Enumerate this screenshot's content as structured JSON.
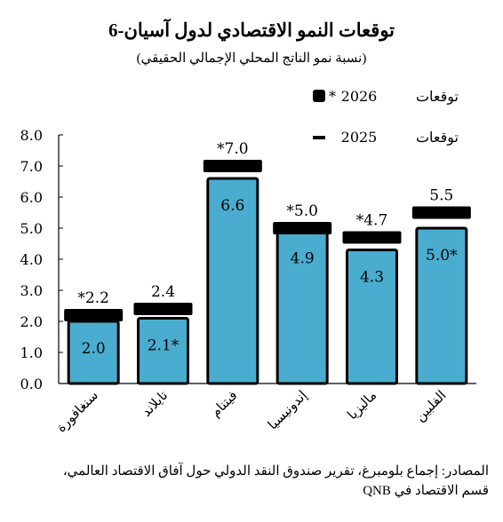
{
  "chart_data": {
    "type": "bar",
    "title": "توقعات النمو الاقتصادي لدول آسيان-6",
    "subtitle": "(نسبة نمو الناتج المحلي الإجمالي الحقيقي)",
    "categories": [
      "سنغافورة",
      "تايلاند",
      "فيتنام",
      "إندونيسيا",
      "ماليزيا",
      "الفلبين"
    ],
    "series": [
      {
        "name": "توقعات 2025",
        "values": [
          2.0,
          2.1,
          6.6,
          4.9,
          4.3,
          5.0
        ],
        "labels": [
          "2.0",
          "2.1*",
          "6.6",
          "4.9",
          "4.3",
          "5.0*"
        ]
      },
      {
        "name": "توقعات 2026",
        "values": [
          2.2,
          2.4,
          7.0,
          5.0,
          4.7,
          5.5
        ],
        "labels": [
          "*2.2",
          "2.4",
          "*7.0",
          "*5.0",
          "*4.7",
          "5.5"
        ]
      }
    ],
    "ylim": [
      0,
      8
    ],
    "yticks": [
      "0.0",
      "1.0",
      "2.0",
      "3.0",
      "4.0",
      "5.0",
      "6.0",
      "7.0",
      "8.0"
    ],
    "legend": [
      {
        "text": "توقعات",
        "year": "2026",
        "mark": "*"
      },
      {
        "text": "توقعات",
        "year": "2025",
        "mark": ""
      }
    ],
    "legend_position": "top-right",
    "grid": false,
    "colors": {
      "bar": "#4aadcf",
      "outline": "#000000",
      "forecast_marker": "#000000"
    }
  },
  "source": {
    "line1": "المصادر: إجماع بلومبرغ، تقرير صندوق النقد الدولي حول آفاق الاقتصاد العالمي،",
    "line2": "قسم الاقتصاد في QNB"
  }
}
